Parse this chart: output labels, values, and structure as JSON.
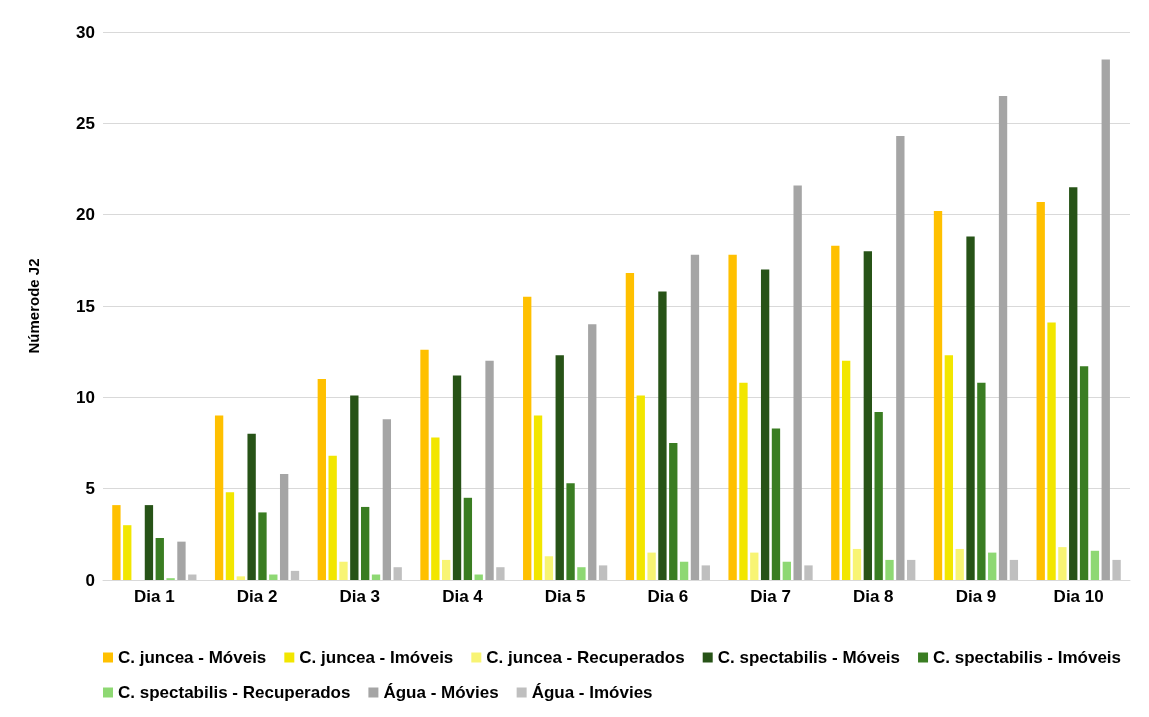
{
  "chart_data": {
    "type": "bar",
    "ylabel": "Númerode J2",
    "categories": [
      "Dia 1",
      "Dia 2",
      "Dia 3",
      "Dia 4",
      "Dia 5",
      "Dia 6",
      "Dia 7",
      "Dia 8",
      "Dia 9",
      "Dia 10"
    ],
    "series": [
      {
        "name": "C. juncea - Móveis",
        "color": "#ffc000",
        "values": [
          4.1,
          9.0,
          11.0,
          12.6,
          15.5,
          16.8,
          17.8,
          18.3,
          20.2,
          20.7
        ]
      },
      {
        "name": "C. juncea - Imóveis",
        "color": "#f2e600",
        "values": [
          3.0,
          4.8,
          6.8,
          7.8,
          9.0,
          10.1,
          10.8,
          12.0,
          12.3,
          14.1
        ]
      },
      {
        "name": "C. juncea - Recuperados",
        "color": "#f8f474",
        "values": [
          0,
          0.2,
          1.0,
          1.1,
          1.3,
          1.5,
          1.5,
          1.7,
          1.7,
          1.8
        ]
      },
      {
        "name": "C. spectabilis - Móveis",
        "color": "#275317",
        "values": [
          4.1,
          8.0,
          10.1,
          11.2,
          12.3,
          15.8,
          17.0,
          18.0,
          18.8,
          21.5
        ]
      },
      {
        "name": "C. spectabilis - Imóveis",
        "color": "#3a7d22",
        "values": [
          2.3,
          3.7,
          4.0,
          4.5,
          5.3,
          7.5,
          8.3,
          9.2,
          10.8,
          11.7
        ]
      },
      {
        "name": "C. spectabilis - Recuperados",
        "color": "#8ed873",
        "values": [
          0.1,
          0.3,
          0.3,
          0.3,
          0.7,
          1.0,
          1.0,
          1.1,
          1.5,
          1.6
        ]
      },
      {
        "name": "Água - Móvies",
        "color": "#a5a5a5",
        "values": [
          2.1,
          5.8,
          8.8,
          12.0,
          14.0,
          17.8,
          21.6,
          24.3,
          26.5,
          28.5
        ]
      },
      {
        "name": "Água - Imóvies",
        "color": "#bfbfbf",
        "values": [
          0.3,
          0.5,
          0.7,
          0.7,
          0.8,
          0.8,
          0.8,
          1.1,
          1.1,
          1.1
        ]
      }
    ],
    "ylim": [
      0,
      30
    ],
    "yticks": [
      0,
      5,
      10,
      15,
      20,
      25,
      30
    ],
    "grid": "y",
    "legend": "bottom"
  }
}
